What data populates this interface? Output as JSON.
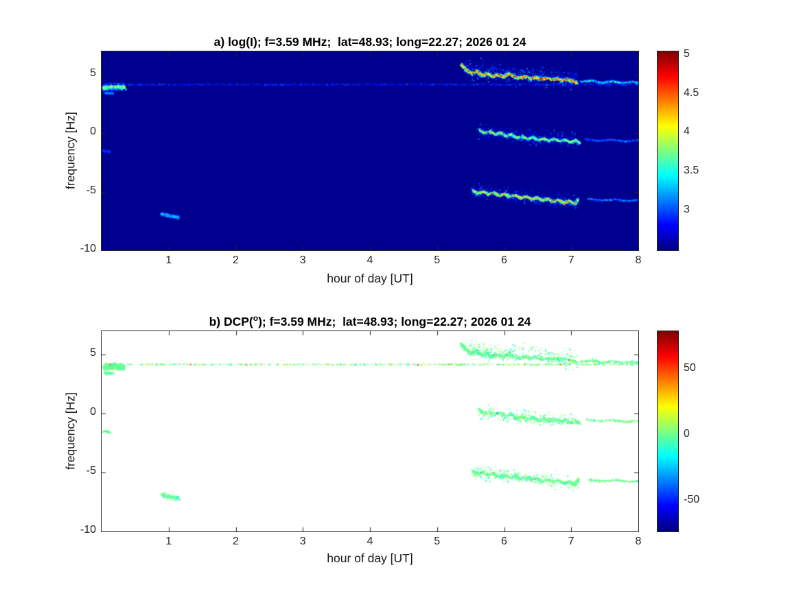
{
  "figure": {
    "background": "#ffffff"
  },
  "chart_data": {
    "type": "heatmap",
    "subtype": "doppler-spectrogram-pair",
    "colormap": "jet",
    "trace_paths": [
      {
        "name": "left-blob-4hz",
        "width": 0.3,
        "path": [
          [
            0.02,
            3.95
          ],
          [
            0.18,
            4.05
          ],
          [
            0.34,
            4.0
          ]
        ]
      },
      {
        "name": "left-blob-3p5hz",
        "width": 0.12,
        "path": [
          [
            0.04,
            3.5
          ],
          [
            0.16,
            3.45
          ]
        ]
      },
      {
        "name": "weak-horizontal-line-4p2hz",
        "width": 0.05,
        "path": [
          [
            0.0,
            4.22
          ],
          [
            8.0,
            4.22
          ]
        ]
      },
      {
        "name": "upper-trace-halo",
        "width": 0.85,
        "path": [
          [
            5.4,
            5.6
          ],
          [
            6.0,
            5.2
          ],
          [
            6.6,
            4.9
          ],
          [
            7.1,
            4.6
          ]
        ]
      },
      {
        "name": "upper-trace",
        "width": 0.17,
        "path": [
          [
            5.35,
            5.95
          ],
          [
            5.42,
            5.5
          ],
          [
            5.5,
            5.15
          ],
          [
            5.58,
            5.35
          ],
          [
            5.66,
            5.0
          ],
          [
            5.74,
            5.15
          ],
          [
            5.82,
            4.9
          ],
          [
            5.9,
            5.05
          ],
          [
            5.98,
            4.85
          ],
          [
            6.06,
            5.15
          ],
          [
            6.14,
            4.9
          ],
          [
            6.22,
            4.75
          ],
          [
            6.3,
            4.9
          ],
          [
            6.38,
            4.7
          ],
          [
            6.46,
            4.85
          ],
          [
            6.54,
            4.65
          ],
          [
            6.62,
            4.75
          ],
          [
            6.7,
            4.6
          ],
          [
            6.78,
            4.7
          ],
          [
            6.86,
            4.55
          ],
          [
            6.94,
            4.65
          ],
          [
            7.02,
            4.5
          ],
          [
            7.08,
            4.35
          ]
        ]
      },
      {
        "name": "upper-trace-tail",
        "width": 0.12,
        "path": [
          [
            7.12,
            4.45
          ],
          [
            7.3,
            4.55
          ],
          [
            7.45,
            4.35
          ],
          [
            7.6,
            4.5
          ],
          [
            7.75,
            4.35
          ],
          [
            7.9,
            4.45
          ],
          [
            8.0,
            4.35
          ]
        ]
      },
      {
        "name": "mid-trace-halo",
        "width": 0.65,
        "path": [
          [
            5.6,
            0.2
          ],
          [
            6.2,
            -0.2
          ],
          [
            6.8,
            -0.5
          ],
          [
            7.1,
            -0.6
          ]
        ]
      },
      {
        "name": "mid-trace",
        "width": 0.15,
        "path": [
          [
            5.62,
            0.35
          ],
          [
            5.7,
            0.05
          ],
          [
            5.78,
            0.2
          ],
          [
            5.86,
            -0.05
          ],
          [
            5.94,
            0.1
          ],
          [
            6.02,
            -0.2
          ],
          [
            6.1,
            -0.05
          ],
          [
            6.18,
            -0.35
          ],
          [
            6.26,
            -0.2
          ],
          [
            6.34,
            -0.45
          ],
          [
            6.42,
            -0.3
          ],
          [
            6.5,
            -0.55
          ],
          [
            6.58,
            -0.4
          ],
          [
            6.66,
            -0.6
          ],
          [
            6.74,
            -0.45
          ],
          [
            6.82,
            -0.65
          ],
          [
            6.9,
            -0.5
          ],
          [
            6.98,
            -0.75
          ],
          [
            7.06,
            -0.55
          ],
          [
            7.12,
            -0.8
          ]
        ]
      },
      {
        "name": "mid-trace-tail",
        "width": 0.1,
        "path": [
          [
            7.2,
            -0.45
          ],
          [
            7.4,
            -0.6
          ],
          [
            7.6,
            -0.5
          ],
          [
            7.8,
            -0.65
          ],
          [
            8.0,
            -0.55
          ]
        ]
      },
      {
        "name": "lower-trace-halo",
        "width": 0.65,
        "path": [
          [
            5.5,
            -4.9
          ],
          [
            6.1,
            -5.3
          ],
          [
            6.7,
            -5.7
          ],
          [
            7.1,
            -5.8
          ]
        ]
      },
      {
        "name": "lower-trace",
        "width": 0.16,
        "path": [
          [
            5.52,
            -4.85
          ],
          [
            5.6,
            -5.1
          ],
          [
            5.68,
            -4.95
          ],
          [
            5.76,
            -5.2
          ],
          [
            5.84,
            -5.05
          ],
          [
            5.92,
            -5.3
          ],
          [
            6.0,
            -5.15
          ],
          [
            6.08,
            -5.4
          ],
          [
            6.16,
            -5.25
          ],
          [
            6.24,
            -5.5
          ],
          [
            6.32,
            -5.35
          ],
          [
            6.4,
            -5.6
          ],
          [
            6.48,
            -5.45
          ],
          [
            6.56,
            -5.7
          ],
          [
            6.64,
            -5.55
          ],
          [
            6.72,
            -5.8
          ],
          [
            6.8,
            -5.65
          ],
          [
            6.88,
            -5.9
          ],
          [
            6.96,
            -5.75
          ],
          [
            7.04,
            -6.0
          ],
          [
            7.1,
            -5.6
          ]
        ]
      },
      {
        "name": "lower-trace-tail",
        "width": 0.1,
        "path": [
          [
            7.25,
            -5.55
          ],
          [
            7.45,
            -5.7
          ],
          [
            7.65,
            -5.6
          ],
          [
            7.85,
            -5.75
          ],
          [
            8.0,
            -5.65
          ]
        ]
      },
      {
        "name": "blob-hour1-minus7hz",
        "width": 0.2,
        "path": [
          [
            0.88,
            -6.85
          ],
          [
            1.0,
            -7.0
          ],
          [
            1.15,
            -7.15
          ]
        ]
      },
      {
        "name": "left-blob-minus1p5hz",
        "width": 0.12,
        "path": [
          [
            0.02,
            -1.45
          ],
          [
            0.12,
            -1.55
          ]
        ]
      }
    ],
    "panels": [
      {
        "id": "a",
        "title_prefix": "a) log(I); f=3.59 MHz;  lat=48.93; long=22.27; 2026 01 24",
        "title_sup": "",
        "title_suffix": "",
        "xlabel": "hour of day [UT]",
        "ylabel": "frequency [Hz]",
        "xlim": [
          0,
          8
        ],
        "ylim": [
          -10,
          7
        ],
        "xticks": [
          1,
          2,
          3,
          4,
          5,
          6,
          7,
          8
        ],
        "yticks": [
          5,
          0,
          -5,
          -10
        ],
        "background": "#00008f",
        "grid": false,
        "colorbar": {
          "min": 2.5,
          "max": 5.05,
          "ticks": [
            5,
            4.5,
            4,
            3.5,
            3
          ]
        },
        "traces": [
          {
            "geom": 0,
            "n": 1000,
            "mode": "core",
            "v": [
              2.75,
              4.2
            ]
          },
          {
            "geom": 1,
            "n": 150,
            "mode": "core",
            "v": [
              2.7,
              3.4
            ]
          },
          {
            "geom": 2,
            "n": 1600,
            "mode": "flat",
            "v": [
              2.6,
              3.05
            ]
          },
          {
            "geom": 3,
            "n": 900,
            "mode": "flat",
            "v": [
              2.58,
              3.15
            ]
          },
          {
            "geom": 4,
            "n": 1700,
            "mode": "core",
            "v": [
              2.9,
              4.95
            ],
            "hot": 0.05,
            "hv": [
              4.5,
              5.05
            ]
          },
          {
            "geom": 5,
            "n": 500,
            "mode": "core",
            "v": [
              2.7,
              3.7
            ]
          },
          {
            "geom": 6,
            "n": 650,
            "mode": "flat",
            "v": [
              2.58,
              3.1
            ]
          },
          {
            "geom": 7,
            "n": 1200,
            "mode": "core",
            "v": [
              2.85,
              4.2
            ],
            "hot": 0.03,
            "hv": [
              4.0,
              4.6
            ]
          },
          {
            "geom": 8,
            "n": 280,
            "mode": "core",
            "v": [
              2.65,
              3.3
            ]
          },
          {
            "geom": 9,
            "n": 700,
            "mode": "flat",
            "v": [
              2.58,
              3.1
            ]
          },
          {
            "geom": 10,
            "n": 1400,
            "mode": "core",
            "v": [
              2.85,
              4.6
            ],
            "hot": 0.04,
            "hv": [
              4.2,
              4.95
            ]
          },
          {
            "geom": 11,
            "n": 300,
            "mode": "core",
            "v": [
              2.65,
              3.4
            ]
          },
          {
            "geom": 12,
            "n": 280,
            "mode": "core",
            "v": [
              2.7,
              3.6
            ]
          },
          {
            "geom": 13,
            "n": 100,
            "mode": "core",
            "v": [
              2.65,
              3.2
            ]
          }
        ]
      },
      {
        "id": "b",
        "title_prefix": "b) DCP(",
        "title_sup": "o",
        "title_suffix": "); f=3.59 MHz;  lat=48.93; long=22.27; 2026 01 24",
        "xlabel": "hour of day [UT]",
        "ylabel": "frequency [Hz]",
        "xlim": [
          0,
          8
        ],
        "ylim": [
          -10,
          7
        ],
        "xticks": [
          1,
          2,
          3,
          4,
          5,
          6,
          7,
          8
        ],
        "yticks": [
          5,
          0,
          -5,
          -10
        ],
        "background": "#ffffff",
        "grid": false,
        "colorbar": {
          "min": -73,
          "max": 79,
          "ticks": [
            50,
            0,
            -50
          ]
        },
        "traces": [
          {
            "geom": 0,
            "n": 600,
            "mode": "flat",
            "v": [
              -14,
              10
            ],
            "hot": 0.06,
            "hv": [
              15,
              55
            ]
          },
          {
            "geom": 1,
            "n": 90,
            "mode": "flat",
            "v": [
              -12,
              10
            ]
          },
          {
            "geom": 2,
            "n": 700,
            "mode": "flat",
            "v": [
              -10,
              12
            ],
            "hot": 0.08,
            "hv": [
              15,
              55
            ]
          },
          {
            "geom": 3,
            "n": 450,
            "mode": "flat",
            "v": [
              -14,
              12
            ]
          },
          {
            "geom": 4,
            "n": 1100,
            "mode": "flat",
            "v": [
              -14,
              12
            ],
            "hot": 0.05,
            "hv": [
              -55,
              55
            ]
          },
          {
            "geom": 5,
            "n": 300,
            "mode": "flat",
            "v": [
              -12,
              10
            ]
          },
          {
            "geom": 6,
            "n": 320,
            "mode": "flat",
            "v": [
              -14,
              12
            ]
          },
          {
            "geom": 7,
            "n": 750,
            "mode": "flat",
            "v": [
              -14,
              12
            ],
            "hot": 0.04,
            "hv": [
              -50,
              40
            ]
          },
          {
            "geom": 8,
            "n": 170,
            "mode": "flat",
            "v": [
              -12,
              10
            ]
          },
          {
            "geom": 9,
            "n": 350,
            "mode": "flat",
            "v": [
              -14,
              12
            ]
          },
          {
            "geom": 10,
            "n": 900,
            "mode": "flat",
            "v": [
              -14,
              12
            ],
            "hot": 0.04,
            "hv": [
              -50,
              45
            ]
          },
          {
            "geom": 11,
            "n": 190,
            "mode": "flat",
            "v": [
              -12,
              10
            ]
          },
          {
            "geom": 12,
            "n": 200,
            "mode": "flat",
            "v": [
              -12,
              10
            ]
          },
          {
            "geom": 13,
            "n": 70,
            "mode": "flat",
            "v": [
              -12,
              10
            ]
          }
        ]
      }
    ]
  }
}
